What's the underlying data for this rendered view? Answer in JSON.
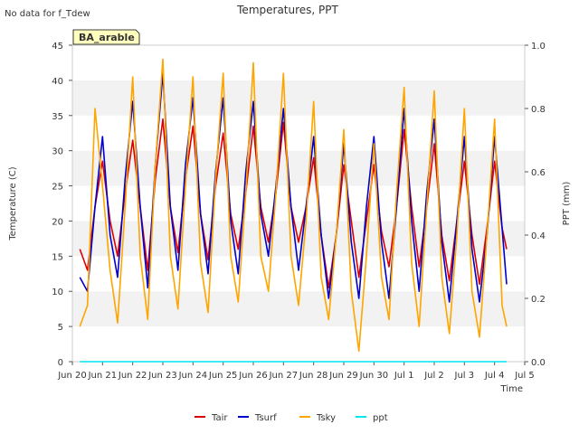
{
  "page": {
    "note": "No data for f_Tdew",
    "badge": "BA_arable"
  },
  "chart_data": {
    "type": "line",
    "title": "Temperatures, PPT",
    "xlabel": "Time",
    "ylabel": "Temperature (C)",
    "y2label": "PPT (mm)",
    "xlim": [
      20,
      35
    ],
    "ylim": [
      0,
      45
    ],
    "y2lim": [
      0,
      1.0
    ],
    "x_ticks": [
      {
        "v": 20,
        "label": "Jun 20"
      },
      {
        "v": 21,
        "label": "Jun 21"
      },
      {
        "v": 22,
        "label": "Jun 22"
      },
      {
        "v": 23,
        "label": "Jun 23"
      },
      {
        "v": 24,
        "label": "Jun 24"
      },
      {
        "v": 25,
        "label": "Jun 25"
      },
      {
        "v": 26,
        "label": "Jun 26"
      },
      {
        "v": 27,
        "label": "Jun 27"
      },
      {
        "v": 28,
        "label": "Jun 28"
      },
      {
        "v": 29,
        "label": "Jun 29"
      },
      {
        "v": 30,
        "label": "Jun 30"
      },
      {
        "v": 31,
        "label": "Jul 1"
      },
      {
        "v": 32,
        "label": "Jul 2"
      },
      {
        "v": 33,
        "label": "Jul 3"
      },
      {
        "v": 34,
        "label": "Jul 4"
      },
      {
        "v": 35,
        "label": "Jul 5"
      }
    ],
    "y_ticks": [
      0,
      5,
      10,
      15,
      20,
      25,
      30,
      35,
      40,
      45
    ],
    "y2_ticks": [
      "0.0",
      "0.2",
      "0.4",
      "0.6",
      "0.8",
      "1.0"
    ],
    "y2_tick_values": [
      0.0,
      0.2,
      0.4,
      0.6,
      0.8,
      1.0
    ],
    "grid": "horizontal bands",
    "legend_position": "bottom-center",
    "series": [
      {
        "name": "Tair",
        "color": "#dd0000",
        "axis": "left",
        "points": [
          [
            20.25,
            16.0
          ],
          [
            20.5,
            13.0
          ],
          [
            20.75,
            22.0
          ],
          [
            21.0,
            28.5
          ],
          [
            21.25,
            20.0
          ],
          [
            21.5,
            15.0
          ],
          [
            21.75,
            24.0
          ],
          [
            22.0,
            31.5
          ],
          [
            22.25,
            22.0
          ],
          [
            22.5,
            13.0
          ],
          [
            22.75,
            26.0
          ],
          [
            23.0,
            34.5
          ],
          [
            23.25,
            22.0
          ],
          [
            23.5,
            15.5
          ],
          [
            23.75,
            26.0
          ],
          [
            24.0,
            33.5
          ],
          [
            24.25,
            21.0
          ],
          [
            24.5,
            14.5
          ],
          [
            24.75,
            25.0
          ],
          [
            25.0,
            32.5
          ],
          [
            25.25,
            21.0
          ],
          [
            25.5,
            16.0
          ],
          [
            25.75,
            24.0
          ],
          [
            26.0,
            33.5
          ],
          [
            26.25,
            22.0
          ],
          [
            26.5,
            17.0
          ],
          [
            26.75,
            24.0
          ],
          [
            27.0,
            34.0
          ],
          [
            27.25,
            22.0
          ],
          [
            27.5,
            17.0
          ],
          [
            27.75,
            22.0
          ],
          [
            28.0,
            29.0
          ],
          [
            28.25,
            18.0
          ],
          [
            28.5,
            10.5
          ],
          [
            28.75,
            18.0
          ],
          [
            29.0,
            28.0
          ],
          [
            29.25,
            20.0
          ],
          [
            29.5,
            12.0
          ],
          [
            29.75,
            20.0
          ],
          [
            30.0,
            28.0
          ],
          [
            30.25,
            18.5
          ],
          [
            30.5,
            13.5
          ],
          [
            30.75,
            22.0
          ],
          [
            31.0,
            33.0
          ],
          [
            31.25,
            22.0
          ],
          [
            31.5,
            13.5
          ],
          [
            31.75,
            22.0
          ],
          [
            32.0,
            31.0
          ],
          [
            32.25,
            18.0
          ],
          [
            32.5,
            11.5
          ],
          [
            32.75,
            20.0
          ],
          [
            33.0,
            28.5
          ],
          [
            33.25,
            18.0
          ],
          [
            33.5,
            11.0
          ],
          [
            33.75,
            19.0
          ],
          [
            34.0,
            28.5
          ],
          [
            34.25,
            19.0
          ],
          [
            34.4,
            16.0
          ]
        ]
      },
      {
        "name": "Tsurf",
        "color": "#0000cc",
        "axis": "left",
        "points": [
          [
            20.25,
            12.0
          ],
          [
            20.5,
            10.0
          ],
          [
            20.75,
            22.0
          ],
          [
            21.0,
            32.0
          ],
          [
            21.25,
            18.0
          ],
          [
            21.5,
            12.0
          ],
          [
            21.75,
            26.0
          ],
          [
            22.0,
            37.0
          ],
          [
            22.25,
            22.0
          ],
          [
            22.5,
            10.5
          ],
          [
            22.75,
            28.0
          ],
          [
            23.0,
            41.0
          ],
          [
            23.25,
            22.0
          ],
          [
            23.5,
            13.0
          ],
          [
            23.75,
            28.0
          ],
          [
            24.0,
            37.5
          ],
          [
            24.25,
            21.0
          ],
          [
            24.5,
            12.5
          ],
          [
            24.75,
            27.0
          ],
          [
            25.0,
            37.5
          ],
          [
            25.25,
            20.0
          ],
          [
            25.5,
            12.5
          ],
          [
            25.75,
            27.0
          ],
          [
            26.0,
            37.0
          ],
          [
            26.25,
            21.0
          ],
          [
            26.5,
            15.0
          ],
          [
            26.75,
            25.0
          ],
          [
            27.0,
            36.0
          ],
          [
            27.25,
            22.0
          ],
          [
            27.5,
            13.0
          ],
          [
            27.75,
            22.0
          ],
          [
            28.0,
            32.0
          ],
          [
            28.25,
            18.0
          ],
          [
            28.5,
            9.0
          ],
          [
            28.75,
            18.0
          ],
          [
            29.0,
            31.0
          ],
          [
            29.25,
            17.0
          ],
          [
            29.5,
            9.0
          ],
          [
            29.75,
            22.0
          ],
          [
            30.0,
            32.0
          ],
          [
            30.25,
            17.0
          ],
          [
            30.5,
            9.0
          ],
          [
            30.75,
            22.0
          ],
          [
            31.0,
            36.0
          ],
          [
            31.25,
            20.0
          ],
          [
            31.5,
            10.0
          ],
          [
            31.75,
            24.0
          ],
          [
            32.0,
            34.5
          ],
          [
            32.25,
            17.0
          ],
          [
            32.5,
            8.5
          ],
          [
            32.75,
            20.0
          ],
          [
            33.0,
            32.0
          ],
          [
            33.25,
            16.0
          ],
          [
            33.5,
            8.5
          ],
          [
            33.75,
            18.0
          ],
          [
            34.0,
            32.0
          ],
          [
            34.25,
            19.0
          ],
          [
            34.4,
            11.0
          ]
        ]
      },
      {
        "name": "Tsky",
        "color": "#ffa500",
        "axis": "left",
        "points": [
          [
            20.25,
            5.0
          ],
          [
            20.5,
            8.0
          ],
          [
            20.75,
            36.0
          ],
          [
            21.0,
            25.0
          ],
          [
            21.25,
            13.0
          ],
          [
            21.5,
            5.5
          ],
          [
            21.75,
            22.0
          ],
          [
            22.0,
            40.5
          ],
          [
            22.25,
            15.0
          ],
          [
            22.5,
            6.0
          ],
          [
            22.75,
            28.0
          ],
          [
            23.0,
            43.0
          ],
          [
            23.25,
            15.0
          ],
          [
            23.5,
            7.5
          ],
          [
            23.75,
            25.0
          ],
          [
            24.0,
            40.5
          ],
          [
            24.25,
            14.0
          ],
          [
            24.5,
            7.0
          ],
          [
            24.75,
            26.0
          ],
          [
            25.0,
            41.0
          ],
          [
            25.25,
            15.0
          ],
          [
            25.5,
            8.5
          ],
          [
            25.75,
            24.0
          ],
          [
            26.0,
            42.5
          ],
          [
            26.25,
            15.0
          ],
          [
            26.5,
            10.0
          ],
          [
            26.75,
            24.0
          ],
          [
            27.0,
            41.0
          ],
          [
            27.25,
            15.0
          ],
          [
            27.5,
            8.0
          ],
          [
            27.75,
            20.0
          ],
          [
            28.0,
            37.0
          ],
          [
            28.25,
            12.0
          ],
          [
            28.5,
            6.0
          ],
          [
            28.75,
            18.0
          ],
          [
            29.0,
            33.0
          ],
          [
            29.25,
            10.0
          ],
          [
            29.5,
            1.5
          ],
          [
            29.75,
            15.0
          ],
          [
            30.0,
            31.0
          ],
          [
            30.25,
            12.0
          ],
          [
            30.5,
            6.0
          ],
          [
            30.75,
            24.0
          ],
          [
            31.0,
            39.0
          ],
          [
            31.25,
            14.0
          ],
          [
            31.5,
            5.0
          ],
          [
            31.75,
            22.0
          ],
          [
            32.0,
            38.5
          ],
          [
            32.25,
            12.0
          ],
          [
            32.5,
            4.0
          ],
          [
            32.75,
            18.0
          ],
          [
            33.0,
            36.0
          ],
          [
            33.25,
            10.0
          ],
          [
            33.5,
            3.5
          ],
          [
            33.75,
            18.0
          ],
          [
            34.0,
            34.5
          ],
          [
            34.25,
            8.0
          ],
          [
            34.4,
            5.0
          ]
        ]
      },
      {
        "name": "ppt",
        "color": "#00e5ee",
        "axis": "right",
        "points": [
          [
            20.25,
            0.0
          ],
          [
            34.4,
            0.0
          ]
        ]
      }
    ]
  }
}
